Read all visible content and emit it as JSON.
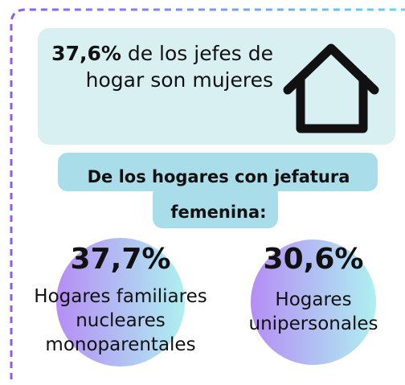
{
  "highlight": {
    "value": "37,6%",
    "text": "de los jefes de hogar son mujeres"
  },
  "heading": "De los hogares con jefatura femenina:",
  "stats": [
    {
      "value": "37,7%",
      "label": "Hogares familiares nucleares monoparentales"
    },
    {
      "value": "30,6%",
      "label": "Hogares unipersonales"
    }
  ]
}
